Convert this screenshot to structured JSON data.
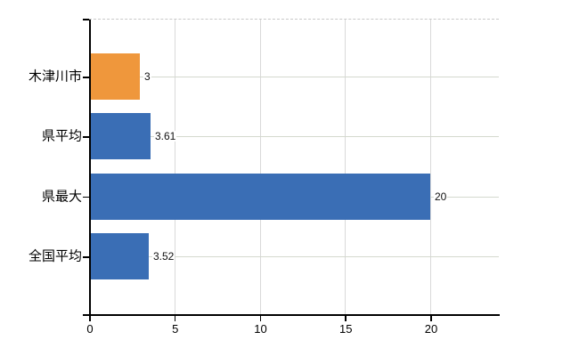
{
  "chart_data": {
    "type": "bar",
    "orientation": "horizontal",
    "title": "",
    "xlabel": "",
    "ylabel": "",
    "categories": [
      "木津川市",
      "県平均",
      "県最大",
      "全国平均"
    ],
    "values": [
      3,
      3.61,
      20,
      3.52
    ],
    "value_labels": [
      "3",
      "3.61",
      "20",
      "3.52"
    ],
    "bar_colors": [
      "#EF973C",
      "#3A6EB5",
      "#3A6EB5",
      "#3A6EB5"
    ],
    "x_ticks": [
      0,
      5,
      10,
      15,
      20
    ],
    "x_tick_labels": [
      "0",
      "5",
      "10",
      "15",
      "20"
    ],
    "xlim": [
      0,
      24.1
    ],
    "legend": "none",
    "grid": {
      "vertical_lines_at_ticks": true,
      "horizontal_line_per_category": true,
      "top_boundary_dashed": true
    },
    "colors": {
      "highlight_bar": "#EF973C",
      "default_bar": "#3A6EB5",
      "axis": "#000000",
      "vertical_gridline": "#D9D9D9",
      "horizontal_gridline": "#D4D9CE",
      "top_dashed_line": "#C8C8C8",
      "background": "#FFFFFF",
      "text": "#000000"
    }
  }
}
